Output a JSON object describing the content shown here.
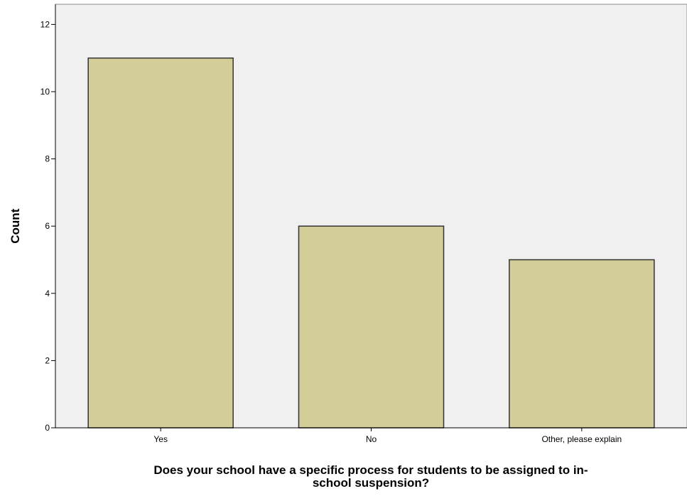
{
  "chart_data": {
    "type": "bar",
    "categories": [
      "Yes",
      "No",
      "Other, please explain"
    ],
    "values": [
      11,
      6,
      5
    ],
    "xlabel_lines": [
      "Does your school have a specific process for students to be assigned to in-",
      "school suspension?"
    ],
    "ylabel": "Count",
    "ylim": [
      0,
      12.6
    ],
    "yticks": [
      0,
      2,
      4,
      6,
      8,
      10,
      12
    ],
    "grid": false,
    "colors": {
      "plot_background": "#f0f0f0",
      "bar_fill": "#d3ce97",
      "bar_stroke": "#333333",
      "axis": "#000000"
    }
  }
}
